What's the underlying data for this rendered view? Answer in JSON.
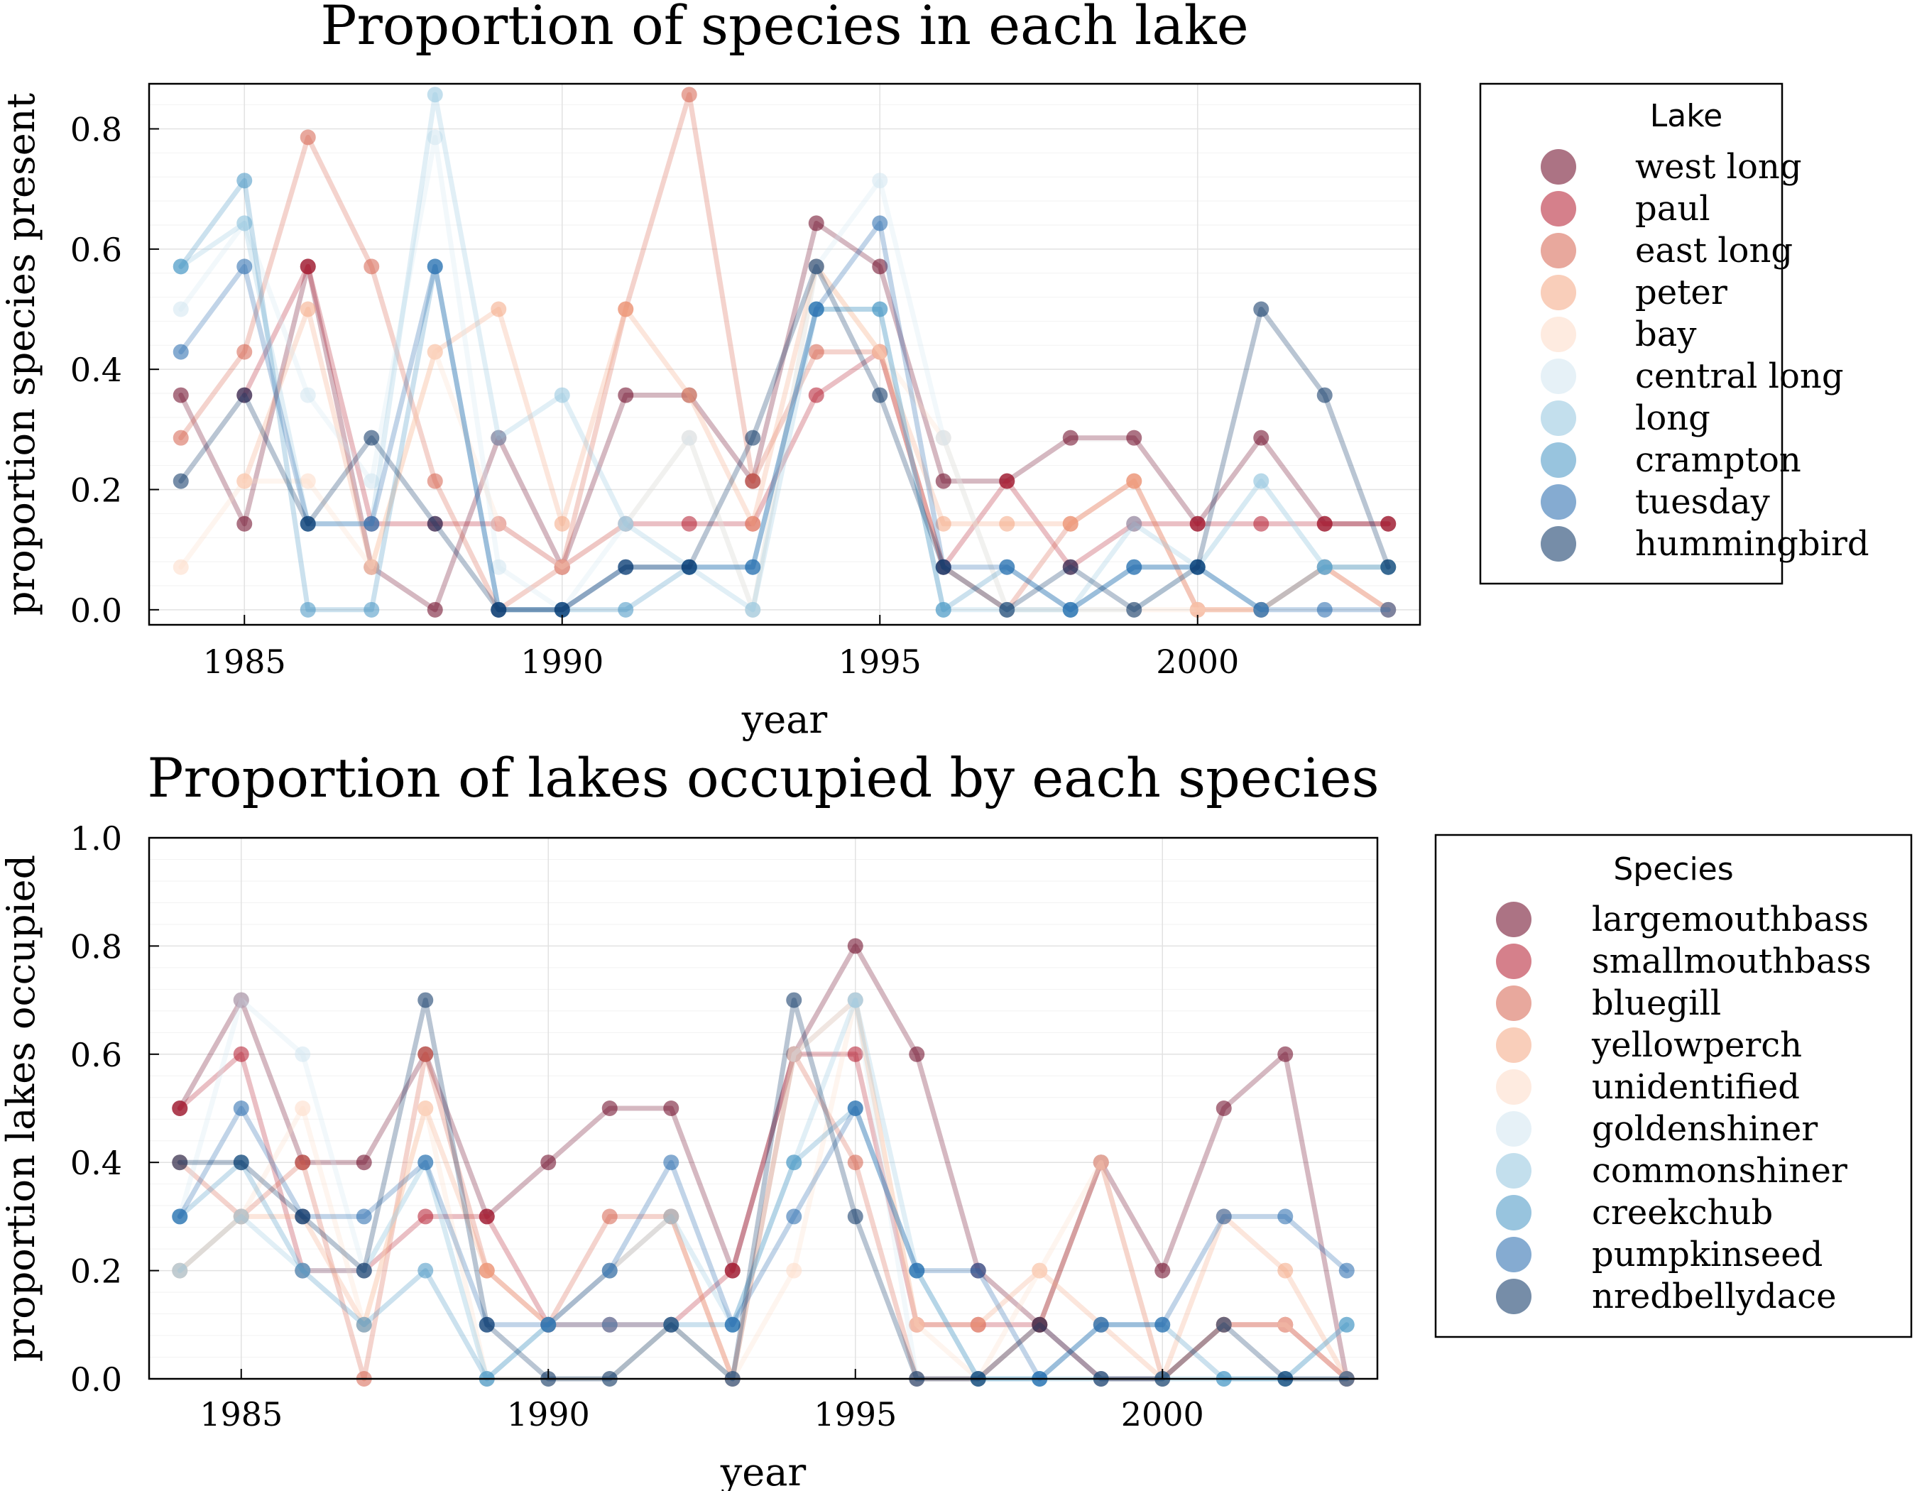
{
  "chart_data": [
    {
      "type": "line",
      "title": "Proportion of species in each lake",
      "xlabel": "year",
      "ylabel": "proportion species present",
      "xlim": [
        1983.5,
        2003.5
      ],
      "ylim": [
        -0.025,
        0.875
      ],
      "xticks": [
        1985,
        1990,
        1995,
        2000
      ],
      "xtick_labels": [
        "1985",
        "1990",
        "1995",
        "2000"
      ],
      "yticks": [
        0.0,
        0.2,
        0.4,
        0.6,
        0.8
      ],
      "ytick_labels": [
        "0.0",
        "0.2",
        "0.4",
        "0.6",
        "0.8"
      ],
      "grid": true,
      "legend_title": "Lake",
      "legend_position": "outside-right",
      "x": [
        1984,
        1985,
        1986,
        1987,
        1988,
        1989,
        1990,
        1991,
        1992,
        1993,
        1994,
        1995,
        1996,
        1997,
        1998,
        1999,
        2000,
        2001,
        2002,
        2003
      ],
      "series": [
        {
          "name": "west long",
          "color": "#67001f",
          "values": [
            0.357,
            0.143,
            0.571,
            0.071,
            0.0,
            0.286,
            0.071,
            0.357,
            0.357,
            0.214,
            0.643,
            0.571,
            0.214,
            0.214,
            0.286,
            0.286,
            0.143,
            0.286,
            0.143,
            0.143
          ]
        },
        {
          "name": "paul",
          "color": "#b2182b",
          "values": [
            null,
            0.357,
            0.571,
            0.143,
            0.143,
            0.143,
            0.071,
            0.143,
            0.143,
            0.143,
            0.357,
            0.429,
            0.071,
            0.214,
            0.071,
            0.143,
            0.143,
            0.143,
            0.143,
            0.143
          ]
        },
        {
          "name": "east long",
          "color": "#d6604d",
          "values": [
            0.286,
            0.429,
            0.786,
            0.571,
            0.214,
            0.0,
            0.071,
            0.5,
            0.857,
            0.214,
            0.429,
            0.429,
            0.071,
            0.0,
            0.143,
            0.214,
            0.0,
            0.0,
            0.071,
            0.0
          ]
        },
        {
          "name": "peter",
          "color": "#f4a582",
          "values": [
            null,
            0.214,
            0.5,
            0.071,
            0.429,
            0.5,
            0.143,
            0.5,
            0.357,
            0.143,
            0.571,
            0.429,
            0.143,
            0.143,
            0.143,
            0.214,
            0.0,
            0.0,
            0.071,
            0.0
          ]
        },
        {
          "name": "bay",
          "color": "#fddbc7",
          "values": [
            0.071,
            0.214,
            0.214,
            0.071,
            0.429,
            0.143,
            0.071,
            0.143,
            0.286,
            0.0,
            0.571,
            0.429,
            0.286,
            0.0,
            0.0,
            0.0,
            0.0,
            0.0,
            0.071,
            0.071
          ]
        },
        {
          "name": "central long",
          "color": "#d1e5f0",
          "values": [
            0.5,
            0.643,
            0.357,
            0.214,
            0.786,
            0.071,
            0.0,
            0.143,
            0.286,
            0.0,
            0.571,
            0.714,
            0.286,
            0.0,
            0.0,
            0.0,
            0.071,
            0.214,
            0.071,
            0.071
          ]
        },
        {
          "name": "long",
          "color": "#92c5de",
          "values": [
            0.571,
            0.643,
            0.143,
            0.143,
            0.857,
            0.286,
            0.357,
            0.143,
            0.071,
            0.0,
            0.5,
            0.5,
            0.0,
            0.0,
            0.0,
            0.143,
            0.071,
            0.214,
            0.071,
            0.071
          ]
        },
        {
          "name": "crampton",
          "color": "#4393c3",
          "values": [
            0.571,
            0.714,
            0.0,
            0.0,
            0.571,
            0.0,
            0.0,
            0.0,
            0.071,
            0.071,
            0.5,
            0.5,
            0.0,
            0.071,
            0.0,
            0.071,
            0.071,
            0.0,
            0.071,
            0.071
          ]
        },
        {
          "name": "tuesday",
          "color": "#2166ac",
          "values": [
            0.429,
            0.571,
            0.143,
            0.143,
            0.571,
            0.0,
            0.0,
            0.071,
            0.071,
            0.071,
            0.5,
            0.643,
            0.071,
            0.071,
            0.0,
            0.071,
            0.071,
            0.0,
            0.0,
            0.0
          ]
        },
        {
          "name": "hummingbird",
          "color": "#053061",
          "values": [
            0.214,
            0.357,
            0.143,
            0.286,
            0.143,
            0.0,
            0.0,
            0.071,
            0.071,
            0.286,
            0.571,
            0.357,
            0.071,
            0.0,
            0.071,
            0.0,
            0.071,
            0.5,
            0.357,
            0.071
          ]
        }
      ]
    },
    {
      "type": "line",
      "title": "Proportion of lakes occupied by each species",
      "xlabel": "year",
      "ylabel": "proportion lakes occupied",
      "xlim": [
        1983.5,
        2003.5
      ],
      "ylim": [
        0.0,
        1.0
      ],
      "xticks": [
        1985,
        1990,
        1995,
        2000
      ],
      "xtick_labels": [
        "1985",
        "1990",
        "1995",
        "2000"
      ],
      "yticks": [
        0.0,
        0.2,
        0.4,
        0.6,
        0.8,
        1.0
      ],
      "ytick_labels": [
        "0.0",
        "0.2",
        "0.4",
        "0.6",
        "0.8",
        "1.0"
      ],
      "grid": true,
      "legend_title": "Species",
      "legend_position": "outside-right",
      "x": [
        1984,
        1985,
        1986,
        1987,
        1988,
        1989,
        1990,
        1991,
        1992,
        1993,
        1994,
        1995,
        1996,
        1997,
        1998,
        1999,
        2000,
        2001,
        2002,
        2003
      ],
      "series": [
        {
          "name": "largemouthbass",
          "color": "#67001f",
          "values": [
            0.5,
            0.7,
            0.4,
            0.4,
            0.6,
            0.3,
            0.4,
            0.5,
            0.5,
            0.2,
            0.6,
            0.8,
            0.6,
            0.2,
            0.1,
            0.4,
            0.2,
            0.5,
            0.6,
            0.0
          ]
        },
        {
          "name": "smallmouthbass",
          "color": "#b2182b",
          "values": [
            0.5,
            0.6,
            0.2,
            0.2,
            0.3,
            0.3,
            0.1,
            0.1,
            0.1,
            0.2,
            0.6,
            0.6,
            0.1,
            0.1,
            0.1,
            0.0,
            0.0,
            0.1,
            0.1,
            0.0
          ]
        },
        {
          "name": "bluegill",
          "color": "#d6604d",
          "values": [
            0.4,
            0.3,
            0.4,
            0.0,
            0.6,
            0.2,
            0.1,
            0.3,
            0.3,
            0.0,
            0.6,
            0.4,
            0.0,
            0.0,
            0.1,
            0.4,
            0.0,
            0.1,
            0.1,
            0.0
          ]
        },
        {
          "name": "yellowperch",
          "color": "#f4a582",
          "values": [
            0.2,
            0.3,
            0.3,
            0.1,
            0.5,
            0.2,
            0.1,
            0.2,
            0.3,
            0.0,
            0.6,
            0.7,
            0.1,
            0.1,
            0.2,
            0.1,
            0.0,
            0.3,
            0.2,
            0.0
          ]
        },
        {
          "name": "unidentified",
          "color": "#fddbc7",
          "values": [
            0.2,
            0.3,
            0.5,
            0.1,
            0.5,
            0.0,
            0.0,
            0.0,
            0.1,
            0.0,
            0.2,
            0.7,
            0.1,
            0.0,
            0.2,
            0.4,
            0.0,
            0.1,
            0.1,
            0.0
          ]
        },
        {
          "name": "goldenshiner",
          "color": "#d1e5f0",
          "values": [
            0.3,
            0.7,
            0.6,
            0.2,
            0.4,
            0.0,
            0.0,
            0.0,
            0.1,
            0.0,
            0.6,
            0.7,
            0.0,
            0.0,
            0.0,
            0.0,
            0.0,
            0.0,
            0.0,
            0.0
          ]
        },
        {
          "name": "commonshiner",
          "color": "#92c5de",
          "values": [
            0.2,
            0.3,
            0.2,
            0.2,
            0.4,
            0.0,
            0.1,
            0.2,
            0.3,
            0.1,
            0.4,
            0.7,
            0.2,
            0.0,
            0.0,
            0.0,
            0.0,
            0.0,
            0.0,
            0.1
          ]
        },
        {
          "name": "creekchub",
          "color": "#4393c3",
          "values": [
            0.3,
            0.4,
            0.2,
            0.1,
            0.2,
            0.0,
            0.1,
            0.1,
            0.1,
            0.1,
            0.4,
            0.5,
            0.2,
            0.0,
            0.0,
            0.1,
            0.1,
            0.0,
            0.0,
            0.1
          ]
        },
        {
          "name": "pumpkinseed",
          "color": "#2166ac",
          "values": [
            0.3,
            0.5,
            0.3,
            0.3,
            0.4,
            0.1,
            0.1,
            0.2,
            0.4,
            0.1,
            0.3,
            0.5,
            0.2,
            0.2,
            0.0,
            0.1,
            0.1,
            0.3,
            0.3,
            0.2
          ]
        },
        {
          "name": "nredbellydace",
          "color": "#053061",
          "values": [
            0.4,
            0.4,
            0.3,
            0.2,
            0.7,
            0.1,
            0.0,
            0.0,
            0.1,
            0.0,
            0.7,
            0.3,
            0.0,
            0.0,
            0.1,
            0.0,
            0.0,
            0.1,
            0.0,
            0.0
          ]
        }
      ]
    }
  ]
}
